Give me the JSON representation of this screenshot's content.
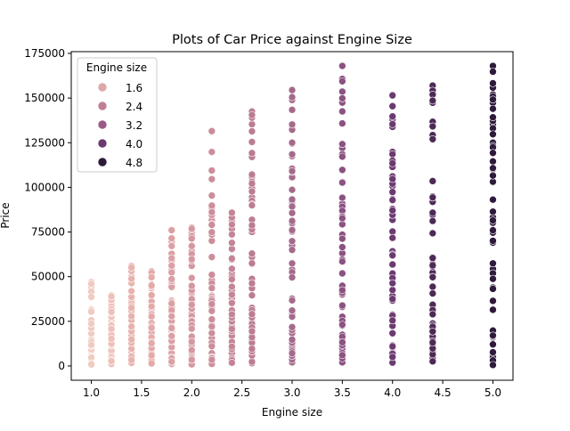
{
  "chart_data": {
    "type": "scatter",
    "title": "Plots of Car Price against Engine Size",
    "xlabel": "Engine size",
    "ylabel": "Price",
    "xlim": [
      0.8,
      5.2
    ],
    "ylim": [
      -8000,
      176000
    ],
    "x_ticks": [
      1.0,
      1.5,
      2.0,
      2.5,
      3.0,
      3.5,
      4.0,
      4.5,
      5.0
    ],
    "x_tick_labels": [
      "1.0",
      "1.5",
      "2.0",
      "2.5",
      "3.0",
      "3.5",
      "4.0",
      "4.5",
      "5.0"
    ],
    "y_ticks": [
      0,
      25000,
      50000,
      75000,
      100000,
      125000,
      150000,
      175000
    ],
    "y_tick_labels": [
      "0",
      "25000",
      "50000",
      "75000",
      "100000",
      "125000",
      "150000",
      "175000"
    ],
    "grid": false,
    "legend": {
      "title": "Engine size",
      "placement": "upper-left",
      "entries": [
        {
          "label": "1.6",
          "color": "#dfa7a9"
        },
        {
          "label": "2.4",
          "color": "#c17f93"
        },
        {
          "label": "3.2",
          "color": "#9b5a86"
        },
        {
          "label": "4.0",
          "color": "#6a3b6f"
        },
        {
          "label": "4.8",
          "color": "#2e1a3b"
        }
      ]
    },
    "color_scale": {
      "low": "#f3d7cf",
      "high": "#2e1a3b",
      "min": 1.0,
      "max": 5.0
    },
    "series": [
      {
        "x": 1.0,
        "y_min": 500,
        "y_max": 47000,
        "color": "#f0cbc1"
      },
      {
        "x": 1.2,
        "y_min": 1000,
        "y_max": 39500,
        "color": "#eec0b7"
      },
      {
        "x": 1.4,
        "y_min": 1500,
        "y_max": 56000,
        "color": "#e8b3ae"
      },
      {
        "x": 1.6,
        "y_min": 1200,
        "y_max": 53000,
        "color": "#e3aaa8"
      },
      {
        "x": 1.8,
        "y_min": 900,
        "y_max": 76000,
        "color": "#dba0a4"
      },
      {
        "x": 2.0,
        "y_min": 800,
        "y_max": 77500,
        "color": "#d597a0"
      },
      {
        "x": 2.2,
        "y_min": 1000,
        "y_max": 131500,
        "color": "#cc8e9b"
      },
      {
        "x": 2.4,
        "y_min": 1500,
        "y_max": 86000,
        "color": "#c48596"
      },
      {
        "x": 2.6,
        "y_min": 1500,
        "y_max": 142500,
        "color": "#bb7d92"
      },
      {
        "x": 3.0,
        "y_min": 2000,
        "y_max": 154500,
        "color": "#a56a8b"
      },
      {
        "x": 3.5,
        "y_min": 2000,
        "y_max": 168000,
        "color": "#8c5282"
      },
      {
        "x": 4.0,
        "y_min": 1500,
        "y_max": 151500,
        "color": "#6b3a6f"
      },
      {
        "x": 4.4,
        "y_min": 2500,
        "y_max": 157000,
        "color": "#4d2a56"
      },
      {
        "x": 5.0,
        "y_min": 500,
        "y_max": 168000,
        "color": "#2e1a3b"
      }
    ]
  }
}
